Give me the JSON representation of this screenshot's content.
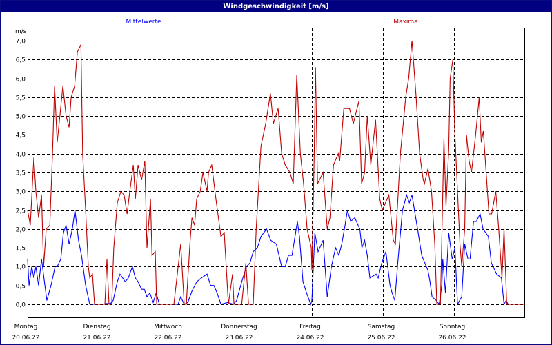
{
  "window_title": "Windgeschwindigkeit [m/s]",
  "colors": {
    "mean": "#0000ff",
    "max": "#c00000",
    "titlebar": "#000080"
  },
  "chart_data": {
    "type": "line",
    "title": "Windgeschwindigkeit [m/s]",
    "ylabel": "m/s",
    "xlabel": "",
    "ylim": [
      0,
      7
    ],
    "xlim_hours": [
      0,
      168
    ],
    "grid": true,
    "y_ticks": [
      "0,0",
      "0,5",
      "1,0",
      "1,5",
      "2,0",
      "2,5",
      "3,0",
      "3,5",
      "4,0",
      "4,5",
      "5,0",
      "5,5",
      "6,0",
      "6,5",
      "7,0"
    ],
    "x_ticks": [
      {
        "day": "Montag",
        "date": "20.06.22"
      },
      {
        "day": "Dienstag",
        "date": "21.06.22"
      },
      {
        "day": "Mittwoch",
        "date": "22.06.22"
      },
      {
        "day": "Donnerstag",
        "date": "23.06.22"
      },
      {
        "day": "Freitag",
        "date": "24.06.22"
      },
      {
        "day": "Samstag",
        "date": "25.06.22"
      },
      {
        "day": "Sonntag",
        "date": "26.06.22"
      }
    ],
    "series": [
      {
        "name": "Mittelwerte",
        "color": "#0000ff",
        "legend_position": "top-left",
        "points": [
          [
            0,
            1.2
          ],
          [
            0.5,
            0.5
          ],
          [
            1.4,
            1.0
          ],
          [
            2.1,
            0.7
          ],
          [
            2.8,
            1.0
          ],
          [
            3.7,
            0.5
          ],
          [
            4.7,
            1.2
          ],
          [
            6,
            0.4
          ],
          [
            6.5,
            0.1
          ],
          [
            7.9,
            0.5
          ],
          [
            9.3,
            1.0
          ],
          [
            10,
            1.0
          ],
          [
            11.2,
            1.2
          ],
          [
            12.1,
            1.9
          ],
          [
            13,
            2.1
          ],
          [
            14,
            1.6
          ],
          [
            15.1,
            2.0
          ],
          [
            16,
            2.5
          ],
          [
            17.2,
            1.7
          ],
          [
            18.2,
            1.3
          ],
          [
            19.6,
            0.5
          ],
          [
            21,
            0.0
          ],
          [
            25.6,
            0.0
          ],
          [
            26.3,
            0.02
          ],
          [
            28,
            0.02
          ],
          [
            28.9,
            0.1
          ],
          [
            30.3,
            0.6
          ],
          [
            31.2,
            0.8
          ],
          [
            33,
            0.6
          ],
          [
            34,
            0.7
          ],
          [
            35.4,
            1.0
          ],
          [
            36.4,
            0.7
          ],
          [
            37.3,
            0.6
          ],
          [
            38.5,
            0.4
          ],
          [
            39.4,
            0.4
          ],
          [
            40.3,
            0.2
          ],
          [
            41.3,
            0.3
          ],
          [
            42.4,
            0.05
          ],
          [
            43.4,
            0.3
          ],
          [
            44.5,
            0.0
          ],
          [
            48,
            0.0
          ],
          [
            50.8,
            0.0
          ],
          [
            51.7,
            0.2
          ],
          [
            52.9,
            0.0
          ],
          [
            54.1,
            0.05
          ],
          [
            55.5,
            0.35
          ],
          [
            57.1,
            0.6
          ],
          [
            58.7,
            0.7
          ],
          [
            60.6,
            0.8
          ],
          [
            61.8,
            0.5
          ],
          [
            62.9,
            0.5
          ],
          [
            64,
            0.3
          ],
          [
            65.3,
            0.0
          ],
          [
            67.6,
            0.05
          ],
          [
            69.5,
            0.0
          ],
          [
            70.6,
            0.1
          ],
          [
            72.3,
            0.6
          ],
          [
            73.9,
            1.0
          ],
          [
            75.1,
            1.1
          ],
          [
            76.2,
            1.4
          ],
          [
            77.6,
            1.5
          ],
          [
            78.8,
            1.8
          ],
          [
            80.7,
            2.0
          ],
          [
            82.1,
            1.7
          ],
          [
            84,
            1.6
          ],
          [
            85.8,
            1.0
          ],
          [
            87,
            1.0
          ],
          [
            88.1,
            1.3
          ],
          [
            89.3,
            1.3
          ],
          [
            91.1,
            2.2
          ],
          [
            91.8,
            1.8
          ],
          [
            93,
            0.6
          ],
          [
            94.2,
            0.3
          ],
          [
            95.6,
            0.0
          ],
          [
            96,
            0.1
          ],
          [
            97,
            1.9
          ],
          [
            98.1,
            1.4
          ],
          [
            99.8,
            1.7
          ],
          [
            101.2,
            0.2
          ],
          [
            102.6,
            1.0
          ],
          [
            104,
            1.5
          ],
          [
            105.1,
            1.3
          ],
          [
            106.1,
            1.6
          ],
          [
            107.2,
            2.1
          ],
          [
            108,
            2.5
          ],
          [
            109.1,
            2.2
          ],
          [
            110.5,
            2.3
          ],
          [
            112.2,
            2.0
          ],
          [
            112.9,
            1.5
          ],
          [
            113.8,
            1.7
          ],
          [
            114.7,
            1.3
          ],
          [
            115.6,
            0.7
          ],
          [
            117.7,
            0.8
          ],
          [
            118.4,
            0.7
          ],
          [
            119.6,
            1.1
          ],
          [
            121,
            1.4
          ],
          [
            122.4,
            0.5
          ],
          [
            123.1,
            0.3
          ],
          [
            124,
            0.1
          ],
          [
            125,
            1.1
          ],
          [
            126.6,
            2.5
          ],
          [
            128,
            2.9
          ],
          [
            128.9,
            2.7
          ],
          [
            129.8,
            2.9
          ],
          [
            131.7,
            2.0
          ],
          [
            133.1,
            1.3
          ],
          [
            135.2,
            0.9
          ],
          [
            135.9,
            0.6
          ],
          [
            136.6,
            0.2
          ],
          [
            138,
            0.1
          ],
          [
            139,
            0.0
          ],
          [
            139.9,
            0.5
          ],
          [
            140.2,
            1.2
          ],
          [
            141.1,
            0.3
          ],
          [
            142.2,
            1.9
          ],
          [
            143.4,
            1.2
          ],
          [
            144.3,
            1.5
          ],
          [
            145.2,
            0.0
          ],
          [
            146.6,
            0.2
          ],
          [
            147.6,
            1.6
          ],
          [
            148.7,
            1.2
          ],
          [
            149.4,
            1.2
          ],
          [
            150.6,
            2.2
          ],
          [
            151.5,
            2.2
          ],
          [
            152.8,
            2.4
          ],
          [
            153.8,
            2.0
          ],
          [
            155.6,
            1.8
          ],
          [
            156.6,
            1.1
          ],
          [
            158.4,
            0.8
          ],
          [
            160,
            0.7
          ],
          [
            160.9,
            0.0
          ],
          [
            161.6,
            0.1
          ],
          [
            162.3,
            0.0
          ],
          [
            168,
            0.0
          ]
        ]
      },
      {
        "name": "Maxima",
        "color": "#c00000",
        "legend_position": "top-right",
        "points": [
          [
            0,
            2.5
          ],
          [
            0.9,
            2.1
          ],
          [
            2.1,
            3.9
          ],
          [
            2.8,
            3.0
          ],
          [
            3.7,
            2.3
          ],
          [
            4.7,
            2.9
          ],
          [
            5.4,
            1.0
          ],
          [
            6.3,
            2.0
          ],
          [
            7.5,
            2.1
          ],
          [
            8.4,
            4.0
          ],
          [
            9.1,
            5.8
          ],
          [
            10,
            4.3
          ],
          [
            10.9,
            5.0
          ],
          [
            11.9,
            5.8
          ],
          [
            13,
            5.0
          ],
          [
            14,
            4.7
          ],
          [
            14.7,
            5.5
          ],
          [
            15.9,
            5.8
          ],
          [
            16.8,
            6.7
          ],
          [
            18,
            6.9
          ],
          [
            18.6,
            4.0
          ],
          [
            19.6,
            2.5
          ],
          [
            20.5,
            1.0
          ],
          [
            21,
            0.7
          ],
          [
            21.9,
            0.8
          ],
          [
            22.6,
            0.0
          ],
          [
            26.1,
            0.0
          ],
          [
            26.8,
            1.2
          ],
          [
            27.5,
            0.0
          ],
          [
            28.4,
            0.0
          ],
          [
            29.1,
            1.5
          ],
          [
            30.3,
            2.7
          ],
          [
            31.5,
            3.0
          ],
          [
            32.6,
            2.9
          ],
          [
            33.6,
            2.4
          ],
          [
            34.5,
            3.0
          ],
          [
            35.7,
            3.7
          ],
          [
            36.4,
            2.8
          ],
          [
            37.3,
            3.7
          ],
          [
            38.5,
            3.3
          ],
          [
            39.6,
            3.8
          ],
          [
            40.3,
            1.5
          ],
          [
            41.5,
            2.8
          ],
          [
            42,
            1.3
          ],
          [
            43.1,
            1.4
          ],
          [
            43.6,
            0.0
          ],
          [
            48,
            0.0
          ],
          [
            49.4,
            0.0
          ],
          [
            51.7,
            1.6
          ],
          [
            52.9,
            0.0
          ],
          [
            53.6,
            0.0
          ],
          [
            54.8,
            1.6
          ],
          [
            55.5,
            2.3
          ],
          [
            56.4,
            2.1
          ],
          [
            57.1,
            2.8
          ],
          [
            58.3,
            3.0
          ],
          [
            59.2,
            3.5
          ],
          [
            60.6,
            3.0
          ],
          [
            61.1,
            3.5
          ],
          [
            62.2,
            3.7
          ],
          [
            63.6,
            2.8
          ],
          [
            65.3,
            1.8
          ],
          [
            66.4,
            1.9
          ],
          [
            67.8,
            0.0
          ],
          [
            69.2,
            0.8
          ],
          [
            69.7,
            0.0
          ],
          [
            72.3,
            0.0
          ],
          [
            73.7,
            1.1
          ],
          [
            74.6,
            0.0
          ],
          [
            76.2,
            0.0
          ],
          [
            77.2,
            2.0
          ],
          [
            78.8,
            4.2
          ],
          [
            80.4,
            4.8
          ],
          [
            82,
            5.6
          ],
          [
            83,
            4.8
          ],
          [
            84.6,
            5.2
          ],
          [
            85.8,
            4.0
          ],
          [
            87,
            3.7
          ],
          [
            88.6,
            3.5
          ],
          [
            89.7,
            3.2
          ],
          [
            90.9,
            6.1
          ],
          [
            92.1,
            4.0
          ],
          [
            93.2,
            3.2
          ],
          [
            94.4,
            2.0
          ],
          [
            95.8,
            1.5
          ],
          [
            96,
            0.9
          ],
          [
            96.8,
            4.0
          ],
          [
            97.2,
            6.3
          ],
          [
            97.9,
            3.2
          ],
          [
            99.8,
            3.5
          ],
          [
            101.2,
            2.0
          ],
          [
            102.1,
            2.3
          ],
          [
            103.3,
            3.7
          ],
          [
            104.9,
            4.0
          ],
          [
            105.4,
            3.8
          ],
          [
            106.8,
            5.2
          ],
          [
            108.7,
            5.2
          ],
          [
            110,
            4.8
          ],
          [
            111.9,
            5.4
          ],
          [
            112.8,
            3.2
          ],
          [
            113.8,
            3.5
          ],
          [
            114.7,
            5.0
          ],
          [
            115.9,
            3.7
          ],
          [
            117.5,
            4.9
          ],
          [
            118.9,
            2.8
          ],
          [
            119.8,
            2.5
          ],
          [
            122,
            2.9
          ],
          [
            123.5,
            1.7
          ],
          [
            124.2,
            1.6
          ],
          [
            125.9,
            4.0
          ],
          [
            127.7,
            5.5
          ],
          [
            128.7,
            6.0
          ],
          [
            129.8,
            7.0
          ],
          [
            131.2,
            5.5
          ],
          [
            132.4,
            4.0
          ],
          [
            133.6,
            3.3
          ],
          [
            134,
            3.2
          ],
          [
            135.2,
            3.6
          ],
          [
            136.4,
            3.0
          ],
          [
            137.5,
            1.6
          ],
          [
            138.2,
            0.0
          ],
          [
            139.4,
            0.0
          ],
          [
            140.6,
            4.4
          ],
          [
            141.3,
            2.6
          ],
          [
            142.2,
            4.1
          ],
          [
            142.7,
            6.0
          ],
          [
            143.6,
            6.5
          ],
          [
            144.3,
            4.5
          ],
          [
            146,
            1.6
          ],
          [
            146.6,
            1.0
          ],
          [
            147.6,
            2.0
          ],
          [
            148.2,
            4.5
          ],
          [
            149.1,
            3.8
          ],
          [
            149.9,
            3.5
          ],
          [
            151.3,
            4.5
          ],
          [
            152.5,
            5.5
          ],
          [
            153.2,
            4.3
          ],
          [
            153.9,
            4.6
          ],
          [
            155.8,
            2.4
          ],
          [
            156.7,
            2.4
          ],
          [
            158.1,
            3.0
          ],
          [
            159.1,
            2.0
          ],
          [
            160.2,
            0.7
          ],
          [
            160.9,
            2.0
          ],
          [
            161.8,
            0.0
          ],
          [
            168,
            0.0
          ]
        ]
      }
    ]
  }
}
